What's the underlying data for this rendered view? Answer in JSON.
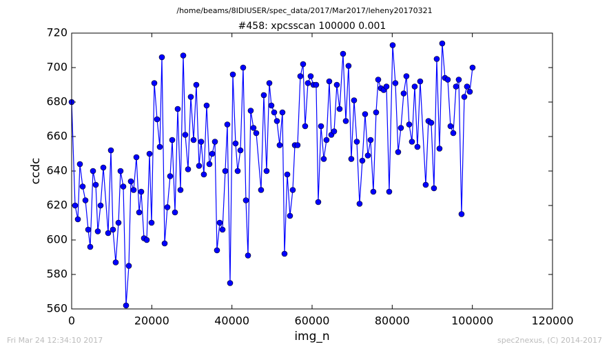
{
  "chart_data": {
    "type": "line",
    "suptitle": "/home/beams/8IDIUSER/spec_data/2017/Mar2017/leheny20170321",
    "title": "#458: xpcsscan 100000 0.001",
    "xlabel": "img_n",
    "ylabel": "ccdc",
    "footer_left": "Fri Mar 24 12:34:10 2017",
    "footer_right": "spec2nexus, (C) 2014-2017",
    "xlim": [
      0,
      120000
    ],
    "xticks": [
      0,
      20000,
      40000,
      60000,
      80000,
      100000,
      120000
    ],
    "ylim": [
      560,
      720
    ],
    "yticks": [
      560,
      580,
      600,
      620,
      640,
      660,
      680,
      700,
      720
    ],
    "series": [
      {
        "color": "#0000ff",
        "x": [
          0,
          860,
          1550,
          2060,
          2750,
          3440,
          4130,
          4640,
          5330,
          6020,
          6530,
          7220,
          7910,
          9110,
          9800,
          10310,
          11000,
          11690,
          12200,
          12890,
          13580,
          14270,
          14780,
          15470,
          16160,
          16850,
          17360,
          18050,
          18740,
          19430,
          19940,
          20630,
          21320,
          22000,
          22520,
          23210,
          23890,
          24580,
          25100,
          25790,
          26470,
          27160,
          27850,
          28360,
          29050,
          29740,
          30430,
          31110,
          31800,
          32320,
          33000,
          33690,
          34380,
          35070,
          35760,
          36270,
          36960,
          37650,
          38330,
          38850,
          39540,
          40230,
          40910,
          41430,
          42120,
          42800,
          43490,
          44010,
          44690,
          45380,
          46070,
          47270,
          47960,
          48650,
          49340,
          49850,
          50540,
          51230,
          51910,
          52600,
          53120,
          53810,
          54490,
          55180,
          55700,
          56380,
          57070,
          57760,
          58270,
          58960,
          59650,
          60340,
          61020,
          61540,
          62230,
          62920,
          63600,
          64290,
          64810,
          65500,
          66180,
          66870,
          67730,
          68420,
          69100,
          69790,
          70480,
          71170,
          71850,
          72540,
          73230,
          73920,
          74600,
          75290,
          75980,
          76500,
          77180,
          77870,
          78560,
          79250,
          80110,
          80790,
          81480,
          82170,
          82860,
          83540,
          84230,
          84920,
          85610,
          86290,
          86980,
          88360,
          89040,
          89730,
          90420,
          91110,
          91800,
          92480,
          93170,
          93860,
          94550,
          95240,
          95920,
          96610,
          97300,
          97990,
          98670,
          99360,
          100050
        ],
        "values": [
          680,
          620,
          612,
          644,
          631,
          623,
          606,
          596,
          640,
          632,
          605,
          620,
          642,
          604,
          652,
          606,
          587,
          610,
          640,
          631,
          562,
          585,
          634,
          629,
          648,
          616,
          628,
          601,
          600,
          650,
          610,
          691,
          670,
          654,
          706,
          598,
          619,
          637,
          658,
          616,
          676,
          629,
          707,
          661,
          641,
          683,
          658,
          690,
          643,
          657,
          638,
          678,
          644,
          650,
          657,
          594,
          610,
          606,
          640,
          667,
          575,
          696,
          656,
          640,
          652,
          700,
          623,
          591,
          675,
          665,
          662,
          629,
          684,
          640,
          691,
          678,
          674,
          669,
          655,
          674,
          592,
          638,
          614,
          629,
          655,
          655,
          695,
          702,
          666,
          691,
          695,
          690,
          690,
          622,
          666,
          647,
          658,
          692,
          661,
          663,
          690,
          676,
          708,
          669,
          701,
          647,
          681,
          657,
          621,
          646,
          673,
          649,
          658,
          628,
          674,
          693,
          688,
          687,
          689,
          628,
          713,
          691,
          651,
          665,
          685,
          695,
          667,
          657,
          689,
          654,
          692,
          632,
          669,
          668,
          630,
          705,
          653,
          714,
          694,
          693,
          666,
          662,
          689,
          693,
          615,
          683,
          689,
          686,
          700
        ]
      }
    ]
  }
}
